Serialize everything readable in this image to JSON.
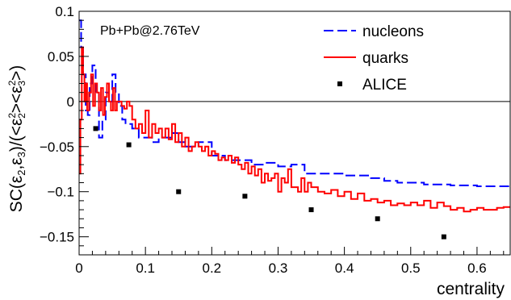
{
  "chart_data": {
    "type": "line",
    "title": "",
    "annotation": "Pb+Pb@2.76TeV",
    "xlabel": "centrality",
    "ylabel": "SC(ε2,ε3)/(<ε2²><ε3²>)",
    "ylabel_parts": {
      "prefix": "SC(",
      "e1": "ε",
      "s1": "2",
      "comma": ",",
      "e2": "ε",
      "s2": "3",
      "mid": ")/(<",
      "e3": "ε",
      "sup3": "2",
      "sub3": "2",
      "gtlt": "><",
      "e4": "ε",
      "sup4": "2",
      "sub4": "3",
      "suffix": ">)"
    },
    "xlim": [
      0,
      0.65
    ],
    "ylim": [
      -0.17,
      0.1
    ],
    "xticks": [
      0,
      0.1,
      0.2,
      0.3,
      0.4,
      0.5,
      0.6
    ],
    "xtick_labels": [
      "0",
      "0.1",
      "0.2",
      "0.3",
      "0.4",
      "0.5",
      "0.6"
    ],
    "yticks": [
      0.1,
      0.05,
      0,
      -0.05,
      -0.1,
      -0.15
    ],
    "ytick_labels": [
      "0.1",
      "0.05",
      "0",
      "−0.05",
      "−0.1",
      "−0.15"
    ],
    "zero_line": true,
    "legend_position": "top-right",
    "series": [
      {
        "name": "nucleons",
        "style": "dashed",
        "color": "#0000ff",
        "x": [
          0,
          0.003,
          0.006,
          0.01,
          0.013,
          0.016,
          0.02,
          0.025,
          0.03,
          0.035,
          0.04,
          0.045,
          0.05,
          0.055,
          0.06,
          0.065,
          0.07,
          0.08,
          0.09,
          0.1,
          0.11,
          0.12,
          0.13,
          0.14,
          0.15,
          0.16,
          0.17,
          0.18,
          0.2,
          0.22,
          0.24,
          0.26,
          0.28,
          0.3,
          0.32,
          0.34,
          0.36,
          0.38,
          0.4,
          0.42,
          0.44,
          0.46,
          0.48,
          0.5,
          0.52,
          0.54,
          0.56,
          0.58,
          0.6,
          0.62,
          0.65
        ],
        "y": [
          0.09,
          0.06,
          0.03,
          -0.01,
          -0.015,
          0.02,
          0.04,
          0.01,
          -0.04,
          -0.02,
          0.01,
          0.0,
          0.03,
          0.01,
          -0.005,
          -0.02,
          -0.025,
          -0.03,
          -0.04,
          -0.04,
          -0.045,
          -0.04,
          -0.04,
          -0.035,
          -0.045,
          -0.05,
          -0.05,
          -0.045,
          -0.06,
          -0.065,
          -0.065,
          -0.07,
          -0.068,
          -0.072,
          -0.07,
          -0.08,
          -0.08,
          -0.08,
          -0.082,
          -0.082,
          -0.085,
          -0.088,
          -0.09,
          -0.09,
          -0.092,
          -0.092,
          -0.093,
          -0.093,
          -0.094,
          -0.094,
          -0.094
        ]
      },
      {
        "name": "quarks",
        "style": "solid",
        "color": "#ff0000",
        "x": [
          0,
          0.002,
          0.004,
          0.006,
          0.008,
          0.01,
          0.012,
          0.015,
          0.018,
          0.021,
          0.024,
          0.027,
          0.03,
          0.033,
          0.036,
          0.039,
          0.042,
          0.045,
          0.048,
          0.051,
          0.054,
          0.057,
          0.06,
          0.064,
          0.068,
          0.072,
          0.076,
          0.08,
          0.085,
          0.09,
          0.095,
          0.1,
          0.105,
          0.11,
          0.115,
          0.12,
          0.125,
          0.13,
          0.135,
          0.14,
          0.145,
          0.15,
          0.155,
          0.16,
          0.165,
          0.17,
          0.175,
          0.18,
          0.185,
          0.19,
          0.195,
          0.2,
          0.205,
          0.21,
          0.215,
          0.22,
          0.225,
          0.23,
          0.235,
          0.24,
          0.245,
          0.25,
          0.255,
          0.26,
          0.265,
          0.27,
          0.275,
          0.28,
          0.285,
          0.29,
          0.295,
          0.3,
          0.305,
          0.31,
          0.315,
          0.32,
          0.325,
          0.33,
          0.335,
          0.34,
          0.345,
          0.35,
          0.36,
          0.37,
          0.38,
          0.39,
          0.4,
          0.41,
          0.42,
          0.43,
          0.44,
          0.45,
          0.46,
          0.47,
          0.48,
          0.49,
          0.5,
          0.51,
          0.52,
          0.53,
          0.54,
          0.55,
          0.56,
          0.57,
          0.58,
          0.59,
          0.6,
          0.61,
          0.62,
          0.63,
          0.64,
          0.65
        ],
        "y": [
          -0.08,
          -0.02,
          0.06,
          0.03,
          0.0,
          0.02,
          -0.01,
          0.01,
          0.03,
          -0.005,
          0.02,
          0.01,
          -0.01,
          0.015,
          -0.015,
          0.005,
          0.02,
          0.0,
          -0.01,
          0.015,
          -0.01,
          0.0,
          0.0,
          -0.005,
          -0.008,
          0.0,
          -0.005,
          -0.02,
          -0.03,
          -0.025,
          -0.035,
          -0.01,
          -0.04,
          -0.025,
          -0.035,
          -0.03,
          -0.04,
          -0.03,
          -0.042,
          -0.025,
          -0.045,
          -0.035,
          -0.05,
          -0.04,
          -0.055,
          -0.05,
          -0.045,
          -0.05,
          -0.055,
          -0.05,
          -0.06,
          -0.055,
          -0.058,
          -0.065,
          -0.062,
          -0.065,
          -0.06,
          -0.068,
          -0.062,
          -0.07,
          -0.075,
          -0.068,
          -0.08,
          -0.072,
          -0.082,
          -0.075,
          -0.09,
          -0.08,
          -0.088,
          -0.085,
          -0.08,
          -0.1,
          -0.085,
          -0.09,
          -0.075,
          -0.095,
          -0.095,
          -0.1,
          -0.085,
          -0.1,
          -0.09,
          -0.095,
          -0.1,
          -0.102,
          -0.098,
          -0.105,
          -0.1,
          -0.108,
          -0.102,
          -0.11,
          -0.108,
          -0.112,
          -0.11,
          -0.115,
          -0.113,
          -0.115,
          -0.112,
          -0.115,
          -0.11,
          -0.118,
          -0.112,
          -0.116,
          -0.12,
          -0.118,
          -0.122,
          -0.12,
          -0.118,
          -0.12,
          -0.12,
          -0.118,
          -0.117,
          -0.117
        ]
      },
      {
        "name": "ALICE",
        "style": "markers",
        "color": "#000000",
        "x": [
          0.025,
          0.075,
          0.15,
          0.25,
          0.35,
          0.45,
          0.55
        ],
        "y": [
          -0.03,
          -0.048,
          -0.1,
          -0.105,
          -0.12,
          -0.13,
          -0.15
        ]
      }
    ]
  }
}
